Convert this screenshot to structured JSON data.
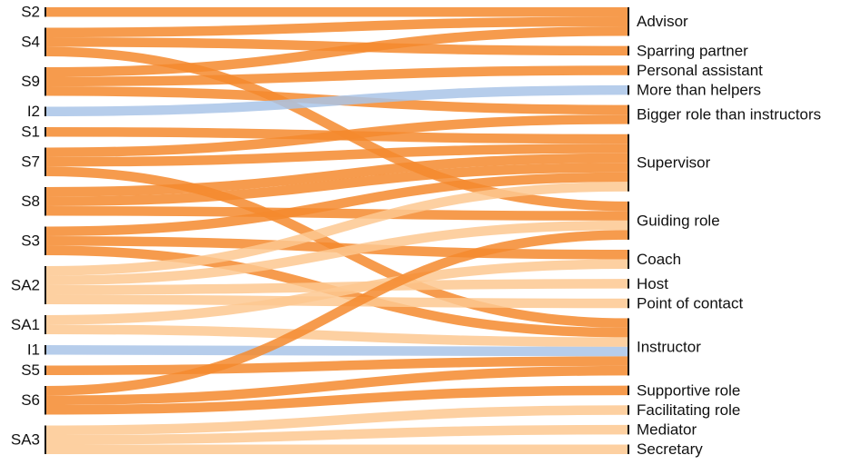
{
  "chart_data": {
    "type": "sankey",
    "sources": [
      "S2",
      "S4",
      "S9",
      "I2",
      "S1",
      "S7",
      "S8",
      "S3",
      "SA2",
      "SA1",
      "I1",
      "S5",
      "S6",
      "SA3"
    ],
    "targets": [
      "Advisor",
      "Sparring partner",
      "Personal assistant",
      "More than helpers",
      "Bigger role than instructors",
      "Supervisor",
      "Guiding role",
      "Coach",
      "Host",
      "Point of contact",
      "Instructor",
      "Supportive role",
      "Facilitating role",
      "Mediator",
      "Secretary"
    ],
    "links": [
      {
        "source": "S2",
        "target": "Advisor",
        "value": 1,
        "color": "#f58a2e"
      },
      {
        "source": "S4",
        "target": "Advisor",
        "value": 1,
        "color": "#f58a2e"
      },
      {
        "source": "S4",
        "target": "Sparring partner",
        "value": 1,
        "color": "#f58a2e"
      },
      {
        "source": "S4",
        "target": "Guiding role",
        "value": 1,
        "color": "#f58a2e"
      },
      {
        "source": "S9",
        "target": "Advisor",
        "value": 1,
        "color": "#f58a2e"
      },
      {
        "source": "S9",
        "target": "Personal assistant",
        "value": 1,
        "color": "#f58a2e"
      },
      {
        "source": "S9",
        "target": "Bigger role than instructors",
        "value": 1,
        "color": "#f58a2e"
      },
      {
        "source": "I2",
        "target": "More than helpers",
        "value": 1,
        "color": "#a9c4e8"
      },
      {
        "source": "S1",
        "target": "Supervisor",
        "value": 1,
        "color": "#f58a2e"
      },
      {
        "source": "S7",
        "target": "Bigger role than instructors",
        "value": 1,
        "color": "#f58a2e"
      },
      {
        "source": "S7",
        "target": "Supervisor",
        "value": 1,
        "color": "#f58a2e"
      },
      {
        "source": "S7",
        "target": "Instructor",
        "value": 1,
        "color": "#f58a2e"
      },
      {
        "source": "S8",
        "target": "Supervisor",
        "value": 1,
        "color": "#f58a2e"
      },
      {
        "source": "S8",
        "target": "Supervisor",
        "value": 1,
        "color": "#f58a2e"
      },
      {
        "source": "S8",
        "target": "Guiding role",
        "value": 1,
        "color": "#f58a2e"
      },
      {
        "source": "S3",
        "target": "Supervisor",
        "value": 1,
        "color": "#f58a2e"
      },
      {
        "source": "S3",
        "target": "Coach",
        "value": 1,
        "color": "#f58a2e"
      },
      {
        "source": "S3",
        "target": "Instructor",
        "value": 1,
        "color": "#f58a2e"
      },
      {
        "source": "SA2",
        "target": "Supervisor",
        "value": 1,
        "color": "#fdc891"
      },
      {
        "source": "SA2",
        "target": "Guiding role",
        "value": 1,
        "color": "#fdc891"
      },
      {
        "source": "SA2",
        "target": "Host",
        "value": 1,
        "color": "#fdc891"
      },
      {
        "source": "SA2",
        "target": "Point of contact",
        "value": 1,
        "color": "#fdc891"
      },
      {
        "source": "SA1",
        "target": "Coach",
        "value": 1,
        "color": "#fdc891"
      },
      {
        "source": "SA1",
        "target": "Instructor",
        "value": 1,
        "color": "#fdc891"
      },
      {
        "source": "I1",
        "target": "Instructor",
        "value": 1,
        "color": "#a9c4e8"
      },
      {
        "source": "S5",
        "target": "Instructor",
        "value": 1,
        "color": "#f58a2e"
      },
      {
        "source": "S6",
        "target": "Guiding role",
        "value": 1,
        "color": "#f58a2e"
      },
      {
        "source": "S6",
        "target": "Instructor",
        "value": 1,
        "color": "#f58a2e"
      },
      {
        "source": "S6",
        "target": "Supportive role",
        "value": 1,
        "color": "#f58a2e"
      },
      {
        "source": "SA3",
        "target": "Facilitating role",
        "value": 1,
        "color": "#fdc891"
      },
      {
        "source": "SA3",
        "target": "Mediator",
        "value": 1,
        "color": "#fdc891"
      },
      {
        "source": "SA3",
        "target": "Secretary",
        "value": 1,
        "color": "#fdc891"
      }
    ]
  }
}
